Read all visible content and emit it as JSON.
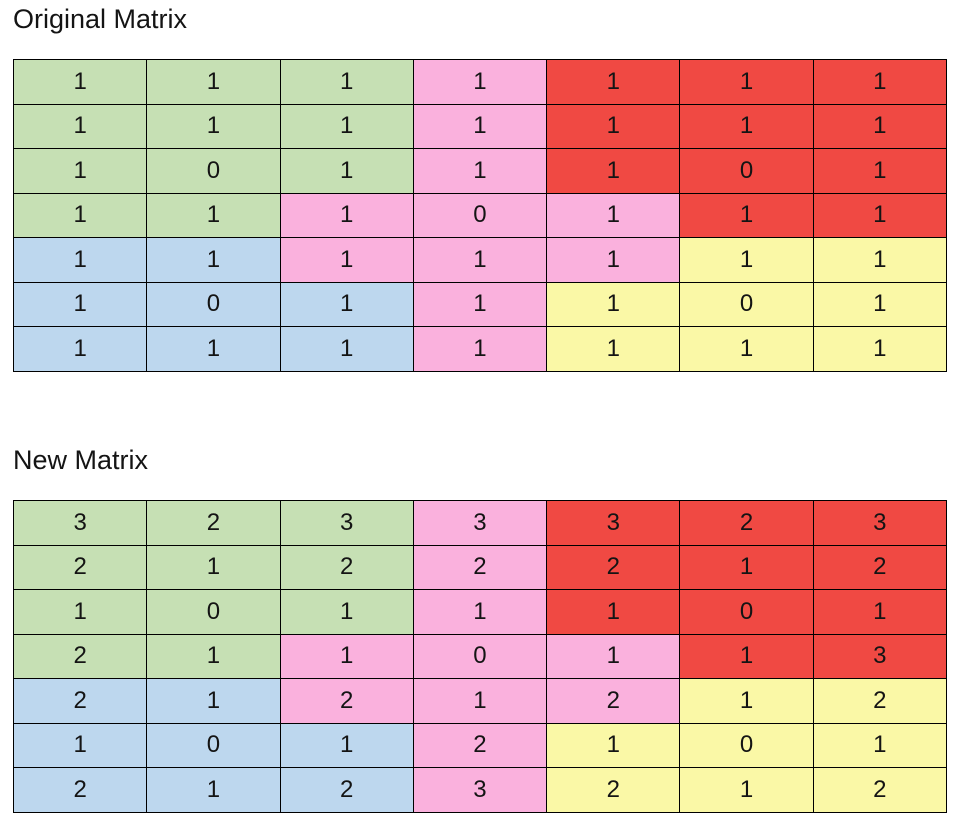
{
  "page": {
    "background": "#ffffff"
  },
  "colors": {
    "green": "#c6e0b4",
    "pink": "#fab1dd",
    "red": "#f04943",
    "blue": "#bdd7ee",
    "yellow": "#faf8a6",
    "border": "#000000",
    "text": "#141414"
  },
  "original_matrix": {
    "title": "Original Matrix",
    "values": [
      [
        1,
        1,
        1,
        1,
        1,
        1,
        1
      ],
      [
        1,
        1,
        1,
        1,
        1,
        1,
        1
      ],
      [
        1,
        0,
        1,
        1,
        1,
        0,
        1
      ],
      [
        1,
        1,
        1,
        0,
        1,
        1,
        1
      ],
      [
        1,
        1,
        1,
        1,
        1,
        1,
        1
      ],
      [
        1,
        0,
        1,
        1,
        1,
        0,
        1
      ],
      [
        1,
        1,
        1,
        1,
        1,
        1,
        1
      ]
    ],
    "cell_colors": [
      [
        "green",
        "green",
        "green",
        "pink",
        "red",
        "red",
        "red"
      ],
      [
        "green",
        "green",
        "green",
        "pink",
        "red",
        "red",
        "red"
      ],
      [
        "green",
        "green",
        "green",
        "pink",
        "red",
        "red",
        "red"
      ],
      [
        "green",
        "green",
        "pink",
        "pink",
        "pink",
        "red",
        "red"
      ],
      [
        "blue",
        "blue",
        "pink",
        "pink",
        "pink",
        "yellow",
        "yellow"
      ],
      [
        "blue",
        "blue",
        "blue",
        "pink",
        "yellow",
        "yellow",
        "yellow"
      ],
      [
        "blue",
        "blue",
        "blue",
        "pink",
        "yellow",
        "yellow",
        "yellow"
      ]
    ]
  },
  "new_matrix": {
    "title": "New Matrix",
    "values": [
      [
        3,
        2,
        3,
        3,
        3,
        2,
        3
      ],
      [
        2,
        1,
        2,
        2,
        2,
        1,
        2
      ],
      [
        1,
        0,
        1,
        1,
        1,
        0,
        1
      ],
      [
        2,
        1,
        1,
        0,
        1,
        1,
        3
      ],
      [
        2,
        1,
        2,
        1,
        2,
        1,
        2
      ],
      [
        1,
        0,
        1,
        2,
        1,
        0,
        1
      ],
      [
        2,
        1,
        2,
        3,
        2,
        1,
        2
      ]
    ],
    "cell_colors": [
      [
        "green",
        "green",
        "green",
        "pink",
        "red",
        "red",
        "red"
      ],
      [
        "green",
        "green",
        "green",
        "pink",
        "red",
        "red",
        "red"
      ],
      [
        "green",
        "green",
        "green",
        "pink",
        "red",
        "red",
        "red"
      ],
      [
        "green",
        "green",
        "pink",
        "pink",
        "pink",
        "red",
        "red"
      ],
      [
        "blue",
        "blue",
        "pink",
        "pink",
        "pink",
        "yellow",
        "yellow"
      ],
      [
        "blue",
        "blue",
        "blue",
        "pink",
        "yellow",
        "yellow",
        "yellow"
      ],
      [
        "blue",
        "blue",
        "blue",
        "pink",
        "yellow",
        "yellow",
        "yellow"
      ]
    ]
  }
}
